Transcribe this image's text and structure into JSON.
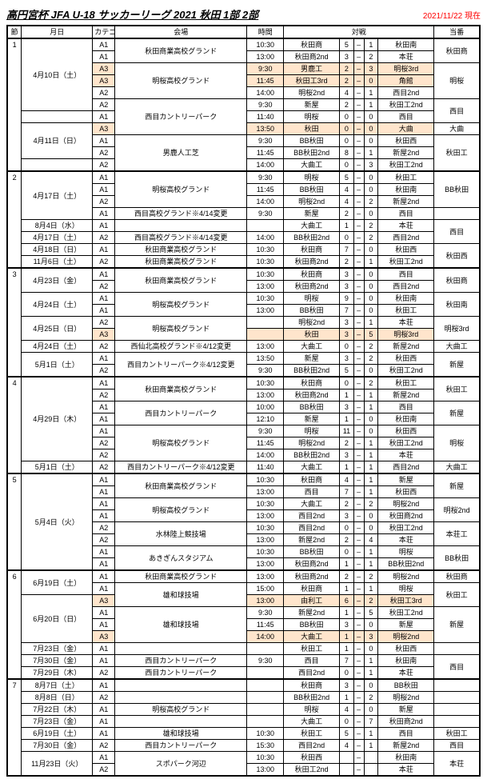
{
  "title": "高円宮杯 JFA U-18 サッカーリーグ 2021 秋田 1部 2部",
  "asof": "2021/11/22 現在",
  "headers": {
    "setsu": "節",
    "date": "月日",
    "cat": "カテゴリー",
    "venue": "会場",
    "time": "時間",
    "vs": "対戦",
    "toban": "当番"
  },
  "rows": [
    {
      "setsu": "1",
      "date": "4月10日（土）",
      "dateSpan": 6,
      "cat": "A1",
      "venue": "秋田商業高校グランド",
      "venueSpan": 2,
      "time": "10:30",
      "t1": "秋田商",
      "s1": "5",
      "d": "–",
      "s2": "1",
      "t2": "秋田南",
      "toban": "秋田商",
      "tobanSpan": 2
    },
    {
      "cat": "A1",
      "time": "13:00",
      "t1": "秋田商2nd",
      "s1": "3",
      "d": "–",
      "s2": "2",
      "t2": "本荘"
    },
    {
      "cat": "A3",
      "venue": "明桜高校グランド",
      "venueSpan": 3,
      "time": "9:30",
      "t1": "男鹿工",
      "s1": "2",
      "d": "–",
      "s2": "3",
      "t2": "明桜3rd",
      "toban": "明桜",
      "tobanSpan": 3,
      "hl": true
    },
    {
      "cat": "A3",
      "time": "11:45",
      "t1": "秋田工3rd",
      "s1": "2",
      "d": "–",
      "s2": "0",
      "t2": "角館",
      "hl": true
    },
    {
      "cat": "A2",
      "time": "14:00",
      "t1": "明桜2nd",
      "s1": "4",
      "d": "–",
      "s2": "1",
      "t2": "西目2nd"
    },
    {
      "cat": "A2",
      "venue": "西目カントリーパーク",
      "venueSpan": 3,
      "time": "9:30",
      "t1": "新屋",
      "s1": "2",
      "d": "–",
      "s2": "1",
      "t2": "秋田工2nd",
      "toban": "西目",
      "tobanSpan": 2
    },
    {
      "date": "",
      "dateSpan": 1,
      "cat": "A1",
      "time": "11:40",
      "t1": "明桜",
      "s1": "0",
      "d": "–",
      "s2": "0",
      "t2": "西目"
    },
    {
      "date": "4月11日（日）",
      "dateSpan": 3,
      "cat": "A3",
      "time": "13:50",
      "t1": "秋田",
      "s1": "0",
      "d": "–",
      "s2": "0",
      "t2": "大曲",
      "toban": "大曲",
      "tobanSpan": 1,
      "hl": true
    },
    {
      "cat": "A1",
      "venue": "男鹿人工芝",
      "venueSpan": 3,
      "time": "9:30",
      "t1": "BB秋田",
      "s1": "0",
      "d": "–",
      "s2": "0",
      "t2": "秋田西",
      "toban": "秋田工",
      "tobanSpan": 3
    },
    {
      "cat": "A2",
      "time": "11:45",
      "t1": "BB秋田2nd",
      "s1": "8",
      "d": "–",
      "s2": "1",
      "t2": "新屋2nd"
    },
    {
      "date": "",
      "cat": "A2",
      "time": "14:00",
      "t1": "大曲工",
      "s1": "0",
      "d": "–",
      "s2": "3",
      "t2": "秋田工2nd"
    },
    {
      "setsu": "2",
      "date": "4月17日（土）",
      "dateSpan": 4,
      "cat": "A1",
      "venue": "明桜高校グランド",
      "venueSpan": 3,
      "time": "9:30",
      "t1": "明桜",
      "s1": "5",
      "d": "–",
      "s2": "0",
      "t2": "秋田工",
      "toban": "BB秋田",
      "tobanSpan": 3,
      "thickTop": true
    },
    {
      "cat": "A1",
      "time": "11:45",
      "t1": "BB秋田",
      "s1": "4",
      "d": "–",
      "s2": "0",
      "t2": "秋田南"
    },
    {
      "cat": "A2",
      "time": "14:00",
      "t1": "明桜2nd",
      "s1": "4",
      "d": "–",
      "s2": "2",
      "t2": "新屋2nd"
    },
    {
      "cat": "A1",
      "venue": "西目高校グランド※4/14変更",
      "time": "9:30",
      "t1": "新屋",
      "s1": "2",
      "d": "–",
      "s2": "0",
      "t2": "西目",
      "toban": "",
      "tobanSpan": 1
    },
    {
      "date": "8月4日（水）",
      "cat": "A1",
      "venue": "",
      "time": "",
      "t1": "大曲工",
      "s1": "1",
      "d": "–",
      "s2": "2",
      "t2": "本荘",
      "toban": "西目",
      "tobanSpan": 2
    },
    {
      "date": "4月17日（土）",
      "cat": "A2",
      "venue": "西目高校グランド※4/14変更",
      "time": "14:00",
      "t1": "BB秋田2nd",
      "s1": "0",
      "d": "–",
      "s2": "2",
      "t2": "西目2nd"
    },
    {
      "date": "4月18日（日）",
      "cat": "A1",
      "venue": "秋田商業高校グランド",
      "time": "10:30",
      "t1": "秋田商",
      "s1": "7",
      "d": "–",
      "s2": "0",
      "t2": "秋田西",
      "toban": "秋田西",
      "tobanSpan": 2
    },
    {
      "date": "11月6日（土）",
      "cat": "A2",
      "venue": "秋田商業高校グランド",
      "time": "10:30",
      "t1": "秋田商2nd",
      "s1": "2",
      "d": "–",
      "s2": "1",
      "t2": "秋田工2nd"
    },
    {
      "setsu": "3",
      "date": "4月23日（金）",
      "dateSpan": 2,
      "cat": "A1",
      "venue": "秋田商業高校グランド",
      "venueSpan": 2,
      "time": "10:30",
      "t1": "秋田商",
      "s1": "3",
      "d": "–",
      "s2": "0",
      "t2": "西目",
      "toban": "秋田商",
      "tobanSpan": 2,
      "thickTop": true
    },
    {
      "cat": "A2",
      "time": "13:00",
      "t1": "秋田商2nd",
      "s1": "3",
      "d": "–",
      "s2": "0",
      "t2": "西目2nd"
    },
    {
      "date": "4月24日（土）",
      "dateSpan": 2,
      "cat": "A1",
      "venue": "明桜高校グランド",
      "venueSpan": 2,
      "time": "10:30",
      "t1": "明桜",
      "s1": "9",
      "d": "–",
      "s2": "0",
      "t2": "秋田南",
      "toban": "秋田南",
      "tobanSpan": 2
    },
    {
      "cat": "A1",
      "time": "13:00",
      "t1": "BB秋田",
      "s1": "7",
      "d": "–",
      "s2": "0",
      "t2": "秋田工"
    },
    {
      "date": "4月25日（日）",
      "dateSpan": 2,
      "cat": "A2",
      "venue": "明桜高校グランド",
      "venueSpan": 2,
      "time": "",
      "t1": "明桜2nd",
      "s1": "3",
      "d": "–",
      "s2": "1",
      "t2": "本荘",
      "toban": "明桜3rd",
      "tobanSpan": 2
    },
    {
      "cat": "A3",
      "time": "",
      "t1": "秋田",
      "s1": "3",
      "d": "–",
      "s2": "5",
      "t2": "明桜3rd",
      "hl": true
    },
    {
      "date": "4月24日（土）",
      "cat": "A2",
      "venue": "西仙北高校グランド※4/12変更",
      "time": "13:00",
      "t1": "大曲工",
      "s1": "0",
      "d": "–",
      "s2": "2",
      "t2": "新屋2nd",
      "toban": "大曲工"
    },
    {
      "date": "5月1日（土）",
      "dateSpan": 2,
      "cat": "A1",
      "venue": "西目カントリーパーク※4/12変更",
      "venueSpan": 2,
      "time": "13:50",
      "t1": "新屋",
      "s1": "3",
      "d": "–",
      "s2": "2",
      "t2": "秋田西",
      "toban": "新屋",
      "tobanSpan": 2
    },
    {
      "cat": "A2",
      "time": "9:30",
      "t1": "BB秋田2nd",
      "s1": "5",
      "d": "–",
      "s2": "0",
      "t2": "秋田工2nd"
    },
    {
      "setsu": "4",
      "date": "4月29日（木）",
      "dateSpan": 7,
      "cat": "A1",
      "venue": "秋田商業高校グランド",
      "venueSpan": 2,
      "time": "10:30",
      "t1": "秋田商",
      "s1": "0",
      "d": "–",
      "s2": "2",
      "t2": "秋田工",
      "toban": "秋田工",
      "tobanSpan": 2,
      "thickTop": true
    },
    {
      "cat": "A2",
      "time": "13:00",
      "t1": "秋田商2nd",
      "s1": "1",
      "d": "–",
      "s2": "1",
      "t2": "新屋2nd"
    },
    {
      "cat": "A1",
      "venue": "西目カントリーパーク",
      "venueSpan": 2,
      "time": "10:00",
      "t1": "BB秋田",
      "s1": "3",
      "d": "–",
      "s2": "1",
      "t2": "西目",
      "toban": "新屋",
      "tobanSpan": 2
    },
    {
      "cat": "A1",
      "time": "12:10",
      "t1": "新屋",
      "s1": "1",
      "d": "–",
      "s2": "0",
      "t2": "秋田南"
    },
    {
      "cat": "A1",
      "venue": "明桜高校グランド",
      "venueSpan": 3,
      "time": "9:30",
      "t1": "明桜",
      "s1": "11",
      "d": "–",
      "s2": "0",
      "t2": "秋田西",
      "toban": "明桜",
      "tobanSpan": 3
    },
    {
      "cat": "A2",
      "time": "11:45",
      "t1": "明桜2nd",
      "s1": "2",
      "d": "–",
      "s2": "1",
      "t2": "秋田工2nd"
    },
    {
      "cat": "A2",
      "time": "14:00",
      "t1": "BB秋田2nd",
      "s1": "3",
      "d": "–",
      "s2": "1",
      "t2": "本荘"
    },
    {
      "date": "5月1日（土）",
      "cat": "A2",
      "venue": "西目カントリーパーク※4/12変更",
      "time": "11:40",
      "t1": "大曲工",
      "s1": "1",
      "d": "–",
      "s2": "1",
      "t2": "西目2nd",
      "toban": "大曲工"
    },
    {
      "setsu": "5",
      "date": "5月4日（火）",
      "dateSpan": 8,
      "cat": "A1",
      "venue": "秋田商業高校グランド",
      "venueSpan": 2,
      "time": "10:30",
      "t1": "秋田商",
      "s1": "4",
      "d": "–",
      "s2": "1",
      "t2": "新屋",
      "toban": "新屋",
      "tobanSpan": 2,
      "thickTop": true
    },
    {
      "cat": "A1",
      "time": "13:00",
      "t1": "西目",
      "s1": "7",
      "d": "–",
      "s2": "1",
      "t2": "秋田西"
    },
    {
      "cat": "A1",
      "venue": "明桜高校グランド",
      "venueSpan": 2,
      "time": "10:30",
      "t1": "大曲工",
      "s1": "2",
      "d": "–",
      "s2": "2",
      "t2": "明桜2nd",
      "toban": "明桜2nd",
      "tobanSpan": 2
    },
    {
      "cat": "A1",
      "time": "13:00",
      "t1": "西目2nd",
      "s1": "3",
      "d": "–",
      "s2": "0",
      "t2": "秋田商2nd"
    },
    {
      "cat": "A2",
      "venue": "水林陸上競技場",
      "venueSpan": 2,
      "time": "10:30",
      "t1": "西目2nd",
      "s1": "0",
      "d": "–",
      "s2": "0",
      "t2": "秋田工2nd",
      "toban": "本荘工",
      "tobanSpan": 2
    },
    {
      "cat": "A2",
      "time": "13:00",
      "t1": "新屋2nd",
      "s1": "2",
      "d": "–",
      "s2": "4",
      "t2": "本荘"
    },
    {
      "cat": "A1",
      "venue": "あきぎんスタジアム",
      "venueSpan": 2,
      "time": "10:30",
      "t1": "BB秋田",
      "s1": "0",
      "d": "–",
      "s2": "1",
      "t2": "明桜",
      "toban": "BB秋田",
      "tobanSpan": 2
    },
    {
      "cat": "A1",
      "time": "13:00",
      "t1": "秋田商2nd",
      "s1": "1",
      "d": "–",
      "s2": "1",
      "t2": "BB秋田2nd"
    },
    {
      "setsu": "6",
      "date": "6月19日（土）",
      "dateSpan": 2,
      "cat": "A1",
      "venue": "秋田商業高校グランド",
      "venueSpan": 1,
      "time": "13:00",
      "t1": "秋田商2nd",
      "s1": "2",
      "d": "–",
      "s2": "2",
      "t2": "明桜2nd",
      "toban": "秋田商",
      "tobanSpan": 1,
      "thickTop": true
    },
    {
      "cat": "A1",
      "venue": "雄和球技場",
      "venueSpan": 2,
      "time": "15:00",
      "t1": "秋田商",
      "s1": "1",
      "d": "–",
      "s2": "1",
      "t2": "明桜",
      "toban": "秋田工",
      "tobanSpan": 2
    },
    {
      "date": "6月20日（日）",
      "dateSpan": 4,
      "cat": "A3",
      "time": "13:00",
      "t1": "由利工",
      "s1": "6",
      "d": "–",
      "s2": "2",
      "t2": "秋田工3rd",
      "hl": true
    },
    {
      "cat": "A1",
      "venue": "雄和球技場",
      "venueSpan": 3,
      "time": "9:30",
      "t1": "新屋2nd",
      "s1": "1",
      "d": "–",
      "s2": "5",
      "t2": "秋田工2nd",
      "toban": "新屋",
      "tobanSpan": 3
    },
    {
      "cat": "A1",
      "time": "11:45",
      "t1": "BB秋田",
      "s1": "3",
      "d": "–",
      "s2": "0",
      "t2": "新屋"
    },
    {
      "cat": "A3",
      "time": "14:00",
      "t1": "大曲工",
      "s1": "1",
      "d": "–",
      "s2": "3",
      "t2": "明桜2nd",
      "hl": true
    },
    {
      "date": "7月23日（金）",
      "cat": "A1",
      "venue": "",
      "time": "",
      "t1": "秋田工",
      "s1": "1",
      "d": "–",
      "s2": "0",
      "t2": "秋田西",
      "toban": ""
    },
    {
      "date": "7月30日（金）",
      "cat": "A1",
      "venue": "西目カントリーパーク",
      "time": "9:30",
      "t1": "西目",
      "s1": "7",
      "d": "–",
      "s2": "1",
      "t2": "秋田南",
      "toban": "西目",
      "tobanSpan": 2
    },
    {
      "date": "7月29日（木）",
      "cat": "A2",
      "venue": "西目カントリーパーク",
      "time": "",
      "t1": "西目2nd",
      "s1": "0",
      "d": "–",
      "s2": "1",
      "t2": "本荘"
    },
    {
      "setsu": "7",
      "date": "8月7日（土）",
      "cat": "A1",
      "venue": "",
      "time": "",
      "t1": "秋田商",
      "s1": "3",
      "d": "–",
      "s2": "0",
      "t2": "BB秋田",
      "toban": "",
      "thickTop": true
    },
    {
      "date": "8月8日（日）",
      "cat": "A2",
      "venue": "",
      "time": "",
      "t1": "BB秋田2nd",
      "s1": "1",
      "d": "–",
      "s2": "2",
      "t2": "明桜2nd",
      "toban": ""
    },
    {
      "date": "7月22日（木）",
      "cat": "A1",
      "venue": "明桜高校グランド",
      "time": "",
      "t1": "明桜",
      "s1": "4",
      "d": "–",
      "s2": "0",
      "t2": "新屋",
      "toban": ""
    },
    {
      "date": "7月23日（金）",
      "cat": "A1",
      "venue": "",
      "time": "",
      "t1": "大曲工",
      "s1": "0",
      "d": "–",
      "s2": "7",
      "t2": "秋田商2nd",
      "toban": ""
    },
    {
      "date": "6月19日（土）",
      "cat": "A1",
      "venue": "雄和球技場",
      "time": "10:30",
      "t1": "秋田工",
      "s1": "5",
      "d": "–",
      "s2": "1",
      "t2": "西目",
      "toban": "秋田工"
    },
    {
      "date": "7月30日（金）",
      "cat": "A2",
      "venue": "西目カントリーパーク",
      "time": "15:30",
      "t1": "西目2nd",
      "s1": "4",
      "d": "–",
      "s2": "1",
      "t2": "新屋2nd",
      "toban": "西目"
    },
    {
      "date": "11月23日（火）",
      "dateSpan": 2,
      "cat": "A1",
      "venue": "スポパーク河辺",
      "venueSpan": 2,
      "time": "10:30",
      "t1": "秋田西",
      "s1": "",
      "d": "–",
      "s2": "",
      "t2": "秋田南",
      "toban": "本荘",
      "tobanSpan": 2
    },
    {
      "cat": "A2",
      "time": "13:00",
      "t1": "秋田工2nd",
      "s1": "",
      "d": "–",
      "s2": "",
      "t2": "本荘"
    }
  ]
}
